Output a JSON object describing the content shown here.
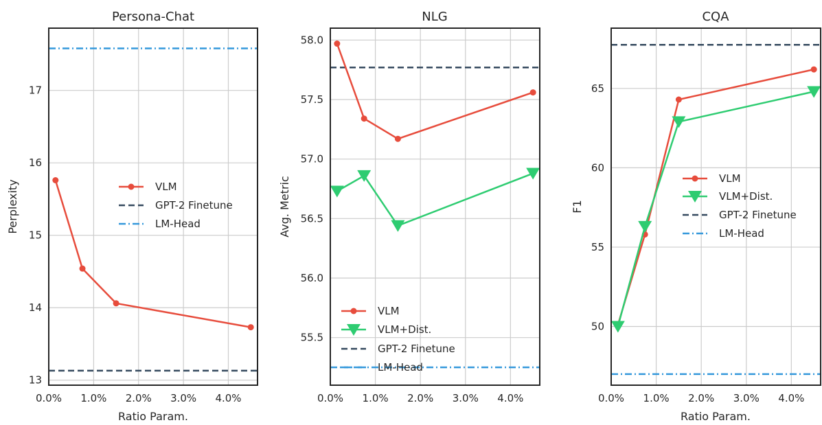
{
  "colors": {
    "vlm": "#e74c3c",
    "vlm_dist": "#2ecc71",
    "gpt2_finetune": "#34495e",
    "lm_head": "#3498db"
  },
  "chart_data": [
    {
      "type": "line",
      "title": "Persona-Chat",
      "xlabel": "Ratio Param.",
      "ylabel": "Perplexity",
      "xlim": [
        0.0,
        4.65
      ],
      "ylim": [
        12.93,
        17.86
      ],
      "xticks": [
        0,
        1,
        2,
        3,
        4
      ],
      "xtick_labels": [
        "0.0%",
        "1.0%",
        "2.0%",
        "3.0%",
        "4.0%"
      ],
      "yticks": [
        13,
        14,
        15,
        16,
        17
      ],
      "ytick_labels": [
        "13",
        "14",
        "15",
        "16",
        "17"
      ],
      "grid": true,
      "legend": "center-right",
      "series": [
        {
          "name": "VLM",
          "color": "#e74c3c",
          "marker": "circle",
          "x": [
            0.15,
            0.75,
            1.5,
            4.5
          ],
          "values": [
            15.76,
            14.54,
            14.06,
            13.73
          ]
        }
      ],
      "hlines": [
        {
          "name": "GPT-2 Finetune",
          "value": 13.13,
          "color": "#34495e",
          "style": "dashed"
        },
        {
          "name": "LM-Head",
          "value": 17.58,
          "color": "#3498db",
          "style": "dashdot"
        }
      ]
    },
    {
      "type": "line",
      "title": "NLG",
      "xlabel": "",
      "ylabel": "Avg. Metric",
      "xlim": [
        0.0,
        4.65
      ],
      "ylim": [
        55.1,
        58.1
      ],
      "xticks": [
        0,
        1,
        2,
        3,
        4
      ],
      "xtick_labels": [
        "0.0%",
        "1.0%",
        "2.0%",
        "3.0%",
        "4.0%"
      ],
      "yticks": [
        55.5,
        56.0,
        56.5,
        57.0,
        57.5,
        58.0
      ],
      "ytick_labels": [
        "55.5",
        "56.0",
        "56.5",
        "57.0",
        "57.5",
        "58.0"
      ],
      "grid": true,
      "legend": "lower-left",
      "series": [
        {
          "name": "VLM",
          "color": "#e74c3c",
          "marker": "circle",
          "x": [
            0.15,
            0.75,
            1.5,
            4.5
          ],
          "values": [
            57.97,
            57.34,
            57.17,
            57.56
          ]
        },
        {
          "name": "VLM+Dist.",
          "color": "#2ecc71",
          "marker": "triangle-down",
          "x": [
            0.15,
            0.75,
            1.5,
            4.5
          ],
          "values": [
            56.73,
            56.86,
            56.44,
            56.88
          ]
        }
      ],
      "hlines": [
        {
          "name": "GPT-2 Finetune",
          "value": 57.77,
          "color": "#34495e",
          "style": "dashed"
        },
        {
          "name": "LM-Head",
          "value": 55.25,
          "color": "#3498db",
          "style": "dashdot"
        }
      ]
    },
    {
      "type": "line",
      "title": "CQA",
      "xlabel": "Ratio Param.",
      "ylabel": "F1",
      "xlim": [
        0.0,
        4.65
      ],
      "ylim": [
        46.3,
        68.8
      ],
      "xticks": [
        0,
        1,
        2,
        3,
        4
      ],
      "xtick_labels": [
        "0.0%",
        "1.0%",
        "2.0%",
        "3.0%",
        "4.0%"
      ],
      "yticks": [
        50,
        55,
        60,
        65
      ],
      "ytick_labels": [
        "50",
        "55",
        "60",
        "65"
      ],
      "grid": true,
      "legend": "center-right",
      "series": [
        {
          "name": "VLM",
          "color": "#e74c3c",
          "marker": "circle",
          "x": [
            0.15,
            0.75,
            1.5,
            4.5
          ],
          "values": [
            50.1,
            55.8,
            64.3,
            66.2
          ]
        },
        {
          "name": "VLM+Dist.",
          "color": "#2ecc71",
          "marker": "triangle-down",
          "x": [
            0.15,
            0.75,
            1.5,
            4.5
          ],
          "values": [
            50.0,
            56.3,
            62.9,
            64.8
          ]
        }
      ],
      "hlines": [
        {
          "name": "GPT-2 Finetune",
          "value": 67.75,
          "color": "#34495e",
          "style": "dashed"
        },
        {
          "name": "LM-Head",
          "value": 47.0,
          "color": "#3498db",
          "style": "dashdot"
        }
      ]
    }
  ]
}
